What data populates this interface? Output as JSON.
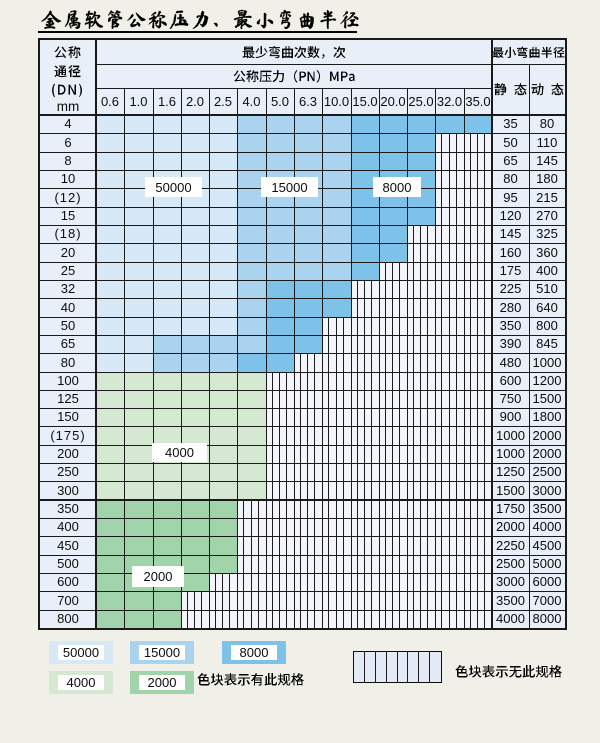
{
  "page_title": "金属软管公称压力、最小弯曲半径",
  "table": {
    "corner_header": {
      "lines": [
        "公称",
        "通径",
        "(DN)",
        "mm"
      ]
    },
    "bend_cycles_header": "最少弯曲次数，次",
    "pressure_header": "公称压力（PN）MPa",
    "pressure_columns": [
      "0.6",
      "1.0",
      "1.6",
      "2.0",
      "2.5",
      "4.0",
      "5.0",
      "6.3",
      "10.0",
      "15.0",
      "20.0",
      "25.0",
      "32.0",
      "35.0"
    ],
    "min_radius_header": "最小弯曲半径",
    "static_header": "静 态",
    "dynamic_header": "动 态",
    "cell_code_legend": {
      "L": "50000",
      "M": "15000",
      "D": "8000",
      "g": "4000",
      "G": "2000",
      "H": "无此规格"
    },
    "rows": [
      {
        "dn": "4",
        "cells": "LLLLLMMMMDDDDD",
        "static": "35",
        "dynamic": "80"
      },
      {
        "dn": "6",
        "cells": "LLLLLMMMMDDDHH",
        "static": "50",
        "dynamic": "110"
      },
      {
        "dn": "8",
        "cells": "LLLLLMMMMDDDHH",
        "static": "65",
        "dynamic": "145"
      },
      {
        "dn": "10",
        "cells": "LLLLLMMMMDDDHH",
        "static": "80",
        "dynamic": "180"
      },
      {
        "dn": "(12)",
        "cells": "LLLLLMMMMDDDHH",
        "static": "95",
        "dynamic": "215"
      },
      {
        "dn": "15",
        "cells": "LLLLLMMMMDDDHH",
        "static": "120",
        "dynamic": "270"
      },
      {
        "dn": "(18)",
        "cells": "LLLLLMMMMDDHHH",
        "static": "145",
        "dynamic": "325"
      },
      {
        "dn": "20",
        "cells": "LLLLLMMMMDDHHH",
        "static": "160",
        "dynamic": "360"
      },
      {
        "dn": "25",
        "cells": "LLLLLMMMMDHHHH",
        "static": "175",
        "dynamic": "400"
      },
      {
        "dn": "32",
        "cells": "LLLLLMDDDHHHHH",
        "static": "225",
        "dynamic": "510"
      },
      {
        "dn": "40",
        "cells": "LLLLLMDDDHHHHH",
        "static": "280",
        "dynamic": "640"
      },
      {
        "dn": "50",
        "cells": "LLLLLMDDHHHHHH",
        "static": "350",
        "dynamic": "800"
      },
      {
        "dn": "65",
        "cells": "LLMMMMDDHHHHHH",
        "static": "390",
        "dynamic": "845"
      },
      {
        "dn": "80",
        "cells": "LLMMMDDHHHHHHH",
        "static": "480",
        "dynamic": "1000"
      },
      {
        "dn": "100",
        "cells": "ggggggHHHHHHHH",
        "static": "600",
        "dynamic": "1200"
      },
      {
        "dn": "125",
        "cells": "ggggggHHHHHHHH",
        "static": "750",
        "dynamic": "1500"
      },
      {
        "dn": "150",
        "cells": "ggggggHHHHHHHH",
        "static": "900",
        "dynamic": "1800"
      },
      {
        "dn": "(175)",
        "cells": "ggggggHHHHHHHH",
        "static": "1000",
        "dynamic": "2000"
      },
      {
        "dn": "200",
        "cells": "ggggggHHHHHHHH",
        "static": "1000",
        "dynamic": "2000"
      },
      {
        "dn": "250",
        "cells": "ggggggHHHHHHHH",
        "static": "1250",
        "dynamic": "2500"
      },
      {
        "dn": "300",
        "cells": "ggggggHHHHHHHH",
        "static": "1500",
        "dynamic": "3000"
      },
      {
        "dn": "350",
        "cells": "GGGGGHHHHHHHHH",
        "static": "1750",
        "dynamic": "3500"
      },
      {
        "dn": "400",
        "cells": "GGGGGHHHHHHHHH",
        "static": "2000",
        "dynamic": "4000"
      },
      {
        "dn": "450",
        "cells": "GGGGGHHHHHHHHH",
        "static": "2250",
        "dynamic": "4500"
      },
      {
        "dn": "500",
        "cells": "GGGGGHHHHHHHHH",
        "static": "2500",
        "dynamic": "5000"
      },
      {
        "dn": "600",
        "cells": "GGGGHHHHHHHHHH",
        "static": "3000",
        "dynamic": "6000"
      },
      {
        "dn": "700",
        "cells": "GGGHHHHHHHHHHH",
        "static": "3500",
        "dynamic": "7000"
      },
      {
        "dn": "800",
        "cells": "GGGHHHHHHHHHHH",
        "static": "4000",
        "dynamic": "8000"
      }
    ]
  },
  "annotations": [
    {
      "text": "50000"
    },
    {
      "text": "15000"
    },
    {
      "text": "8000"
    },
    {
      "text": "4000"
    },
    {
      "text": "2000"
    }
  ],
  "legend": {
    "items": [
      {
        "label": "50000",
        "color": "#d7e9f7"
      },
      {
        "label": "15000",
        "color": "#a9d3ef"
      },
      {
        "label": "8000",
        "color": "#7ec2e9"
      },
      {
        "label": "4000",
        "color": "#d5e8d2"
      },
      {
        "label": "2000",
        "color": "#a1d4ab"
      }
    ],
    "available_note": "色块表示有此规格",
    "unavailable_note": "色块表示无此规格"
  },
  "colors": {
    "cycles_50000": "#d7e9f7",
    "cycles_15000": "#a9d3ef",
    "cycles_8000": "#7ec2e9",
    "cycles_4000": "#d5e8d2",
    "cycles_2000": "#a1d4ab"
  }
}
